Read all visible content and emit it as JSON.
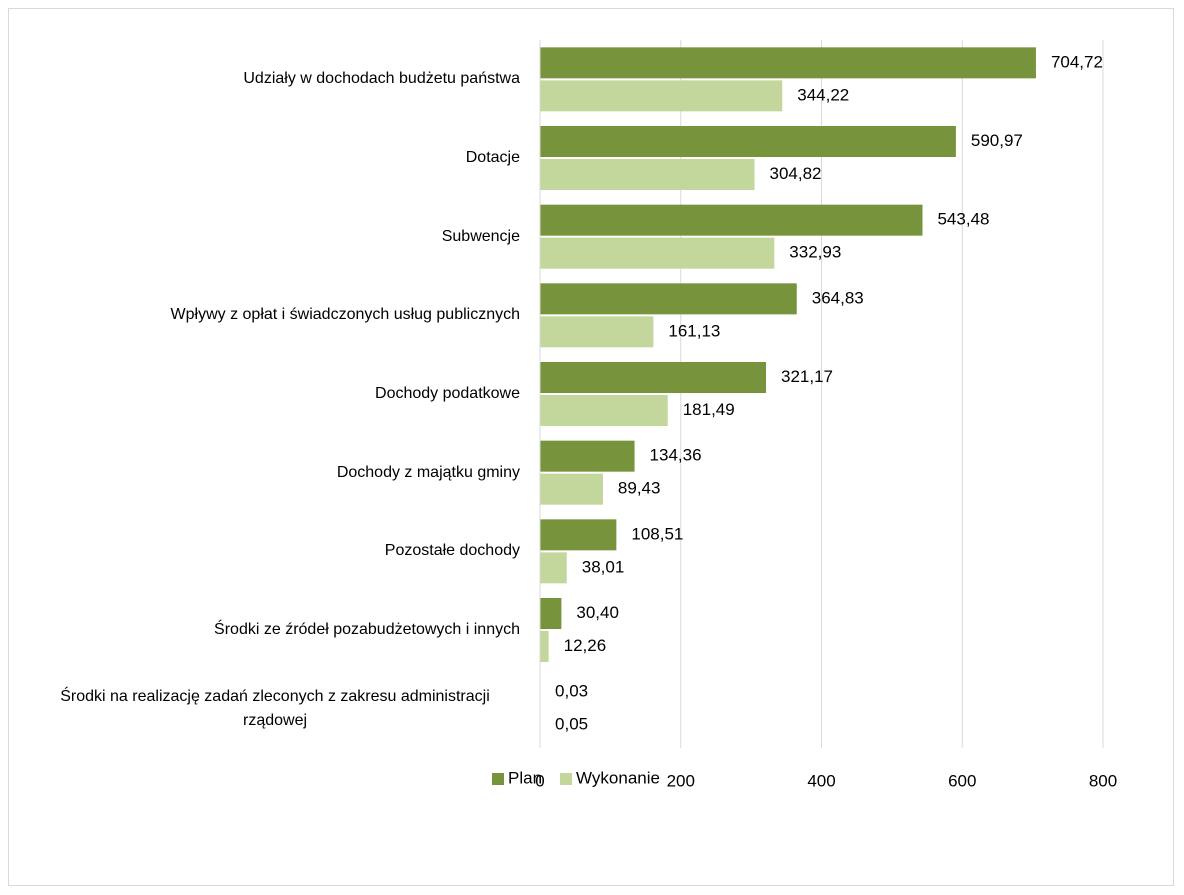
{
  "chart_data": {
    "type": "bar",
    "orientation": "horizontal",
    "categories": [
      "Udziały w dochodach budżetu państwa",
      "Dotacje",
      "Subwencje",
      "Wpływy z opłat i świadczonych usług publicznych",
      "Dochody podatkowe",
      "Dochody z majątku gminy",
      "Pozostałe dochody",
      "Środki ze źródeł pozabudżetowych i innych",
      "Środki na realizację zadań zleconych z zakresu administracji rządowej"
    ],
    "series": [
      {
        "name": "Plan",
        "color": "#77933c",
        "values": [
          704.72,
          590.97,
          543.48,
          364.83,
          321.17,
          134.36,
          108.51,
          30.4,
          0.03
        ],
        "value_labels": [
          "704,72",
          "590,97",
          "543,48",
          "364,83",
          "321,17",
          "134,36",
          "108,51",
          "30,40",
          "0,03"
        ]
      },
      {
        "name": "Wykonanie",
        "color": "#c3d69b",
        "values": [
          344.22,
          304.82,
          332.93,
          161.13,
          181.49,
          89.43,
          38.01,
          12.26,
          0.05
        ],
        "value_labels": [
          "344,22",
          "304,82",
          "332,93",
          "161,13",
          "181,49",
          "89,43",
          "38,01",
          "12,26",
          "0,05"
        ]
      }
    ],
    "xlim": [
      0,
      800
    ],
    "xticks": [
      0,
      200,
      400,
      600,
      800
    ],
    "grid": true,
    "legend": "bottom"
  }
}
